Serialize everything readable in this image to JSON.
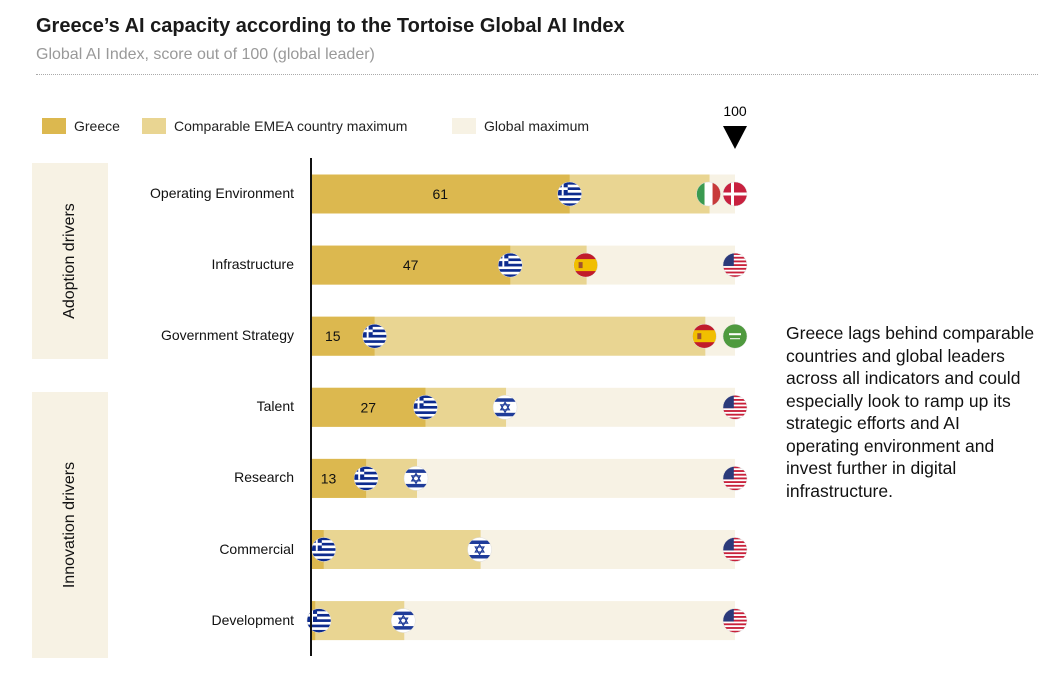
{
  "title": "Greece’s AI capacity according to the Tortoise Global AI Index",
  "subtitle": "Global AI Index, score out of 100 (global leader)",
  "groups": {
    "adoption": "Adoption drivers",
    "innovation": "Innovation drivers"
  },
  "note": "Greece lags behind comparable countries and global leaders across all indicators and could especially look to ramp up its strategic efforts and AI operating environment and invest further in digital infrastructure.",
  "colors": {
    "greece": "#dcb84f",
    "emea": "#e9d592",
    "global": "#f7f2e4"
  },
  "chart_data": {
    "type": "bar",
    "title": "Greece’s AI capacity according to the Tortoise Global AI Index",
    "subtitle": "Global AI Index, score out of 100 (global leader)",
    "xlim": [
      0,
      100
    ],
    "marker_label": "100",
    "legend": [
      "Greece",
      "Comparable EMEA country maximum",
      "Global maximum"
    ],
    "legend_position": "top-left",
    "categories": [
      "Operating Environment",
      "Infrastructure",
      "Government Strategy",
      "Talent",
      "Research",
      "Commercial",
      "Development"
    ],
    "series": [
      {
        "name": "Greece",
        "values": [
          61,
          47,
          15,
          27,
          13,
          3,
          1
        ],
        "data_labels": [
          "61",
          "47",
          "15",
          "27",
          "13",
          "",
          ""
        ]
      },
      {
        "name": "Comparable EMEA country maximum",
        "values": [
          94,
          65,
          93,
          46,
          25,
          40,
          22
        ],
        "countries": [
          "italy",
          "spain",
          "spain",
          "israel",
          "israel",
          "israel",
          "israel"
        ]
      },
      {
        "name": "Global maximum",
        "values": [
          100,
          100,
          100,
          100,
          100,
          100,
          100
        ],
        "countries": [
          "denmark",
          "usa",
          "saudi-arabia",
          "usa",
          "usa",
          "usa",
          "usa"
        ]
      }
    ]
  }
}
